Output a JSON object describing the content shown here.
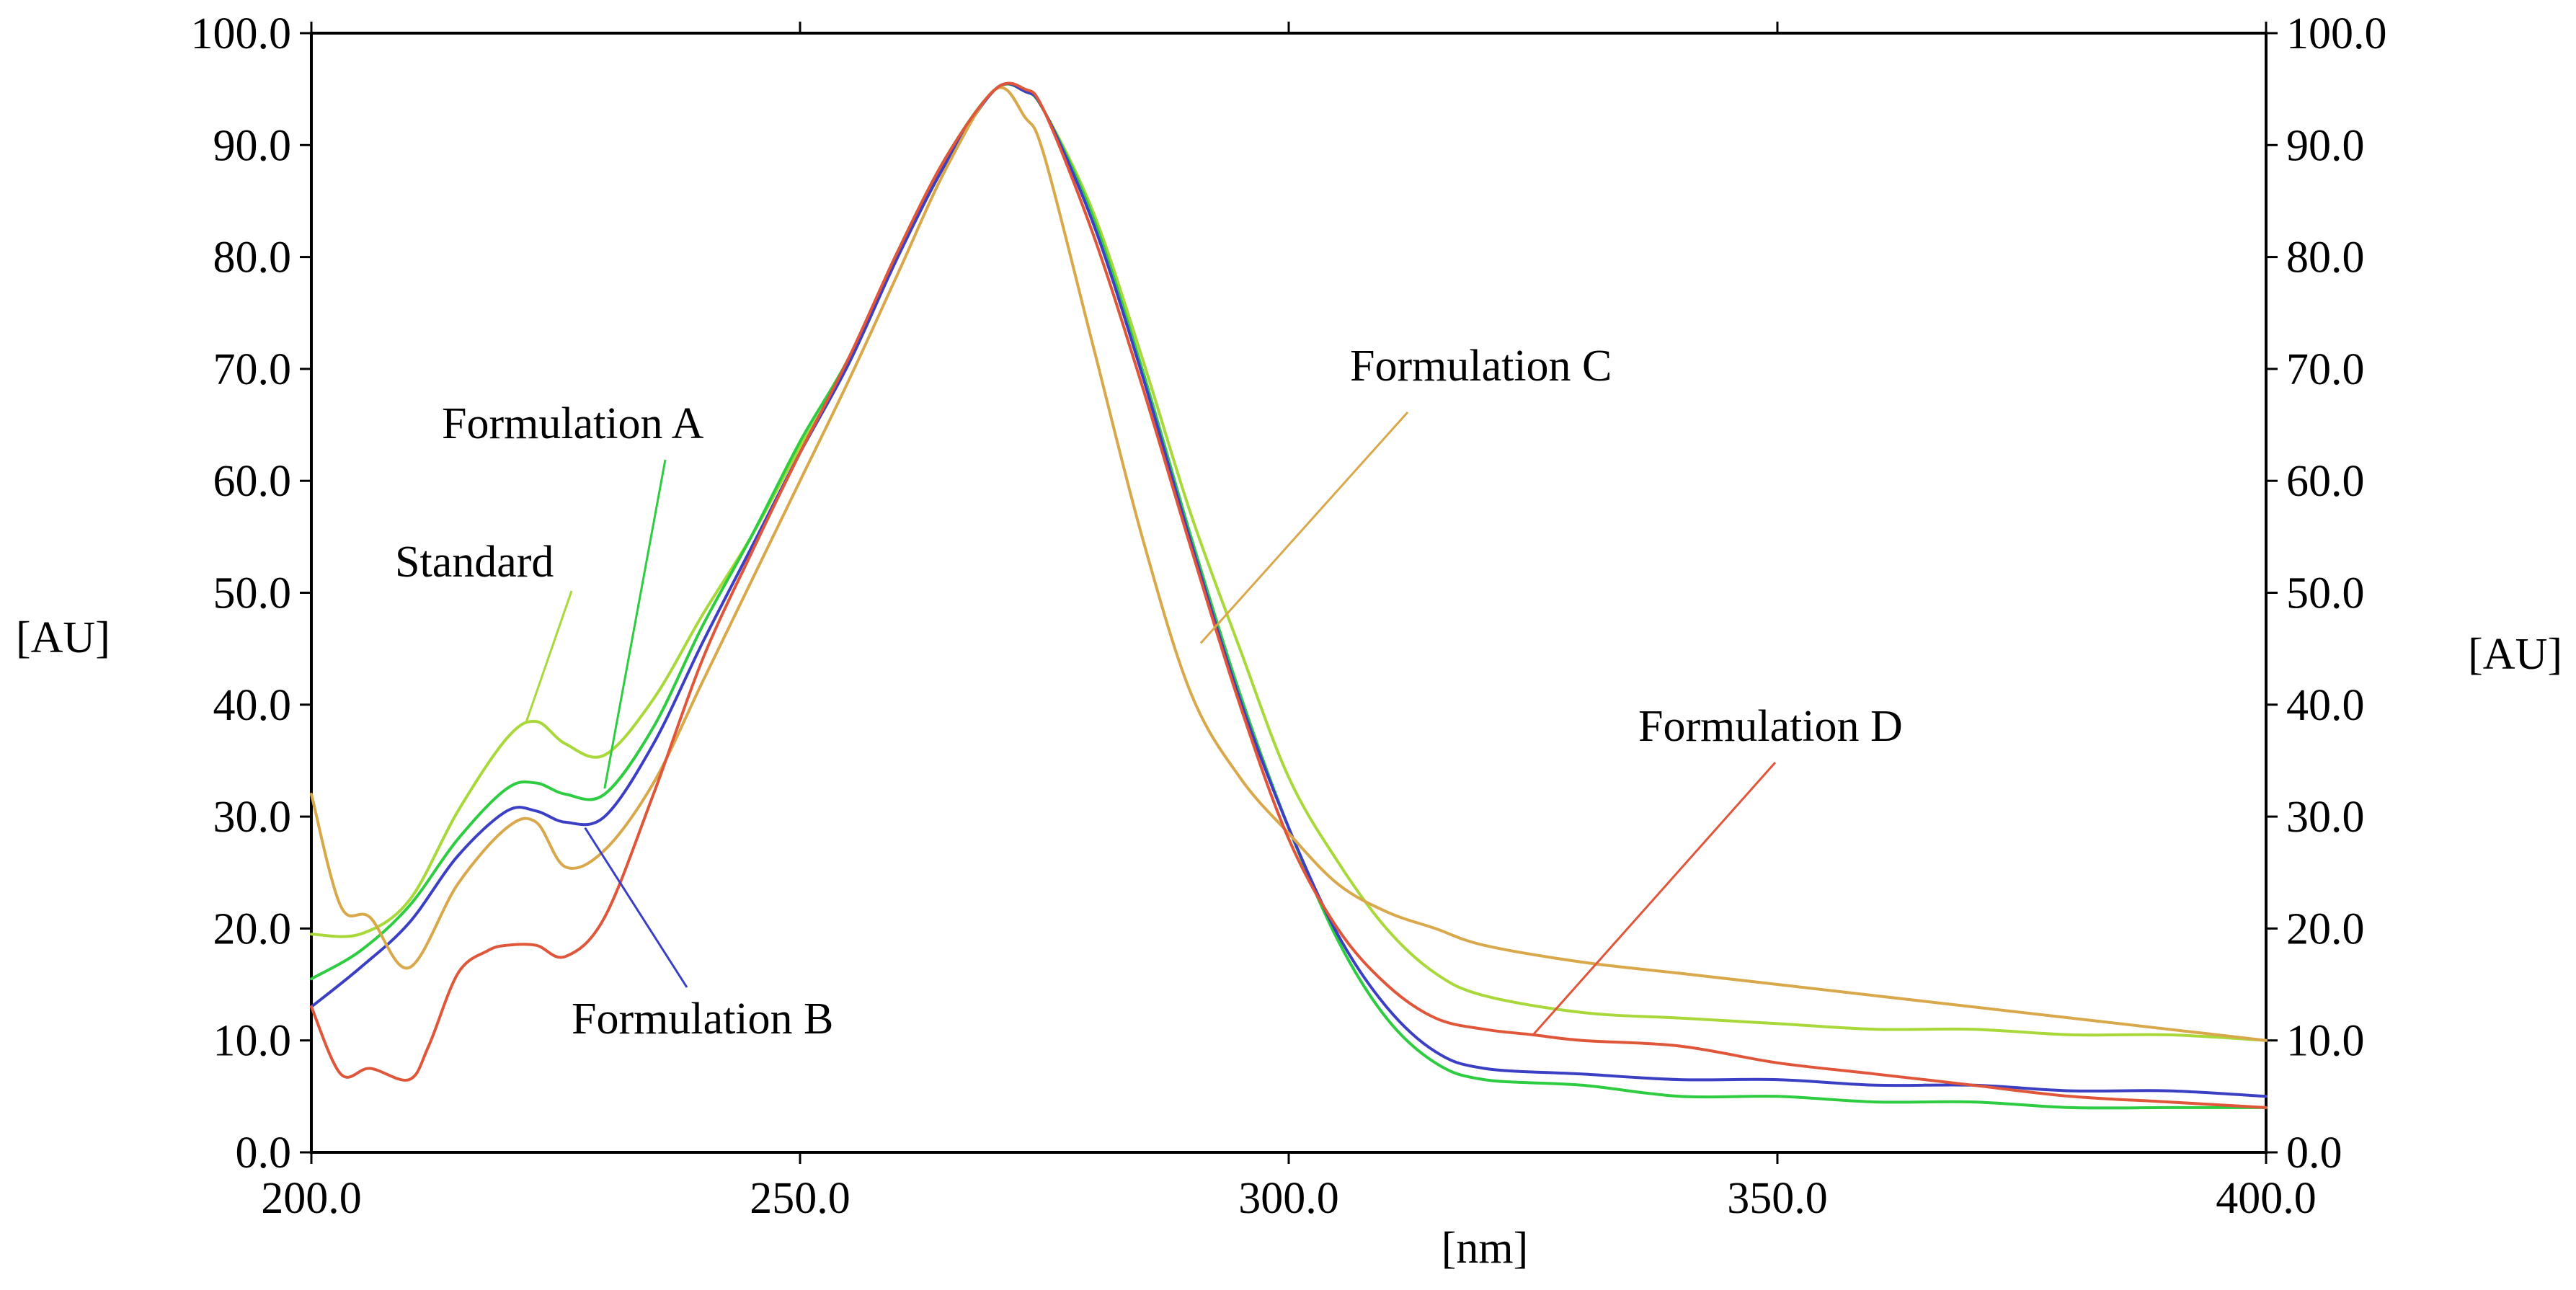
{
  "chart_data": {
    "type": "line",
    "title": "",
    "xlabel": "[nm]",
    "ylabel_left": "[AU]",
    "ylabel_right": "[AU]",
    "xlim": [
      200,
      400
    ],
    "ylim": [
      0,
      100
    ],
    "x_ticks": [
      "200.0",
      "250.0",
      "300.0",
      "350.0",
      "400.0"
    ],
    "y_ticks": [
      "0.0",
      "10.0",
      "20.0",
      "30.0",
      "40.0",
      "50.0",
      "60.0",
      "70.0",
      "80.0",
      "90.0",
      "100.0"
    ],
    "grid": false,
    "series": [
      {
        "name": "Standard",
        "color": "#a8d83a",
        "x": [
          200,
          205,
          210,
          215,
          220,
          223,
          226,
          230,
          235,
          240,
          245,
          250,
          255,
          260,
          265,
          270,
          273,
          275,
          280,
          285,
          290,
          295,
          300,
          305,
          310,
          315,
          320,
          330,
          340,
          350,
          360,
          370,
          380,
          390,
          400
        ],
        "y": [
          19.5,
          19.5,
          22.5,
          30.5,
          37.0,
          38.5,
          36.5,
          35.5,
          40.5,
          48.0,
          55.0,
          63.0,
          70.5,
          80.0,
          88.5,
          95.0,
          94.8,
          93.0,
          84.0,
          71.0,
          57.0,
          45.0,
          33.5,
          26.0,
          20.0,
          16.0,
          14.0,
          12.5,
          12.0,
          11.5,
          11.0,
          11.0,
          10.5,
          10.5,
          10.0
        ]
      },
      {
        "name": "Formulation A",
        "color": "#2ecc40",
        "x": [
          200,
          205,
          210,
          215,
          220,
          223,
          226,
          230,
          235,
          240,
          245,
          250,
          255,
          260,
          265,
          270,
          273,
          275,
          280,
          285,
          290,
          295,
          300,
          305,
          310,
          315,
          320,
          330,
          340,
          350,
          360,
          370,
          380,
          390,
          400
        ],
        "y": [
          15.5,
          18.0,
          22.0,
          28.0,
          32.5,
          33.0,
          32.0,
          32.0,
          38.0,
          47.0,
          55.0,
          63.5,
          71.0,
          80.5,
          89.0,
          95.0,
          94.8,
          93.0,
          83.5,
          70.0,
          55.0,
          41.0,
          29.0,
          19.0,
          12.0,
          8.0,
          6.5,
          6.0,
          5.0,
          5.0,
          4.5,
          4.5,
          4.0,
          4.0,
          4.0
        ]
      },
      {
        "name": "Formulation B",
        "color": "#3a3fc4",
        "x": [
          200,
          205,
          210,
          215,
          220,
          223,
          226,
          230,
          235,
          240,
          245,
          250,
          255,
          260,
          265,
          270,
          273,
          275,
          280,
          285,
          290,
          295,
          300,
          305,
          310,
          315,
          320,
          330,
          340,
          350,
          360,
          370,
          380,
          390,
          400
        ],
        "y": [
          13.0,
          16.5,
          20.5,
          26.5,
          30.5,
          30.5,
          29.5,
          30.0,
          36.5,
          45.5,
          54.0,
          62.5,
          70.5,
          80.0,
          88.5,
          95.0,
          94.8,
          93.0,
          83.0,
          69.5,
          54.5,
          40.5,
          29.0,
          19.5,
          13.0,
          9.0,
          7.5,
          7.0,
          6.5,
          6.5,
          6.0,
          6.0,
          5.5,
          5.5,
          5.0
        ]
      },
      {
        "name": "Formulation C",
        "color": "#d9a84a",
        "x": [
          200,
          203,
          206,
          210,
          215,
          220,
          223,
          226,
          230,
          235,
          240,
          245,
          250,
          255,
          260,
          265,
          270,
          273,
          275,
          280,
          285,
          290,
          295,
          300,
          305,
          310,
          315,
          320,
          330,
          340,
          350,
          360,
          370,
          380,
          390,
          400
        ],
        "y": [
          32.0,
          22.0,
          21.0,
          16.5,
          24.0,
          29.0,
          29.5,
          25.5,
          27.0,
          33.0,
          42.0,
          51.0,
          60.0,
          69.0,
          78.5,
          88.0,
          95.0,
          92.5,
          89.0,
          72.0,
          55.0,
          41.0,
          33.5,
          28.5,
          24.0,
          21.5,
          20.0,
          18.5,
          17.0,
          16.0,
          15.0,
          14.0,
          13.0,
          12.0,
          11.0,
          10.0
        ]
      },
      {
        "name": "Formulation D",
        "color": "#e0563a",
        "x": [
          200,
          203,
          206,
          210,
          212,
          215,
          218,
          220,
          223,
          226,
          230,
          235,
          240,
          245,
          250,
          255,
          260,
          265,
          270,
          273,
          275,
          280,
          285,
          290,
          295,
          300,
          305,
          310,
          315,
          320,
          325,
          330,
          340,
          350,
          360,
          370,
          380,
          390,
          400
        ],
        "y": [
          13.0,
          7.0,
          7.5,
          6.5,
          9.5,
          16.0,
          18.0,
          18.5,
          18.5,
          17.5,
          21.0,
          32.0,
          44.0,
          53.5,
          62.5,
          71.0,
          80.5,
          89.0,
          95.0,
          95.0,
          93.0,
          82.0,
          68.5,
          54.0,
          40.0,
          28.0,
          20.0,
          15.0,
          12.0,
          11.0,
          10.5,
          10.0,
          9.5,
          8.0,
          7.0,
          6.0,
          5.0,
          4.5,
          4.0
        ]
      }
    ],
    "annotations": [
      {
        "text": "Standard",
        "series": "Standard",
        "point": [
          222,
          38.5
        ]
      },
      {
        "text": "Formulation A",
        "series": "Formulation A",
        "point": [
          230,
          32.5
        ]
      },
      {
        "text": "Formulation B",
        "series": "Formulation B",
        "point": [
          228,
          29.0
        ]
      },
      {
        "text": "Formulation C",
        "series": "Formulation C",
        "point": [
          291,
          45.5
        ]
      },
      {
        "text": "Formulation D",
        "series": "Formulation D",
        "point": [
          325,
          10.5
        ]
      }
    ]
  }
}
